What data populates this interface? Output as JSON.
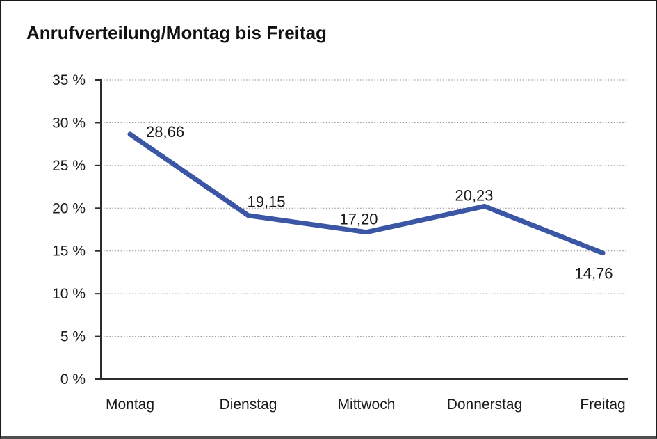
{
  "title": "Anrufverteilung/Montag bis Freitag",
  "chart_data": {
    "type": "line",
    "title": "Anrufverteilung/Montag bis Freitag",
    "categories": [
      "Montag",
      "Dienstag",
      "Mittwoch",
      "Donnerstag",
      "Freitag"
    ],
    "values": [
      28.66,
      19.15,
      17.2,
      20.23,
      14.76
    ],
    "data_labels": [
      "28,66",
      "19,15",
      "17,20",
      "20,23",
      "14,76"
    ],
    "xlabel": "",
    "ylabel": "",
    "ylim": [
      0,
      35
    ],
    "y_tick_step": 5,
    "y_tick_labels": [
      "0 %",
      "5 %",
      "10 %",
      "15 %",
      "20 %",
      "25 %",
      "30 %",
      "35 %"
    ],
    "grid": "horizontal-dotted",
    "legend": "none",
    "series_name": "Anrufverteilung",
    "line_color": "#3A56A4",
    "axis_color": "#2b2b2b",
    "grid_color": "#888888",
    "text_color": "#1a1a1a"
  }
}
